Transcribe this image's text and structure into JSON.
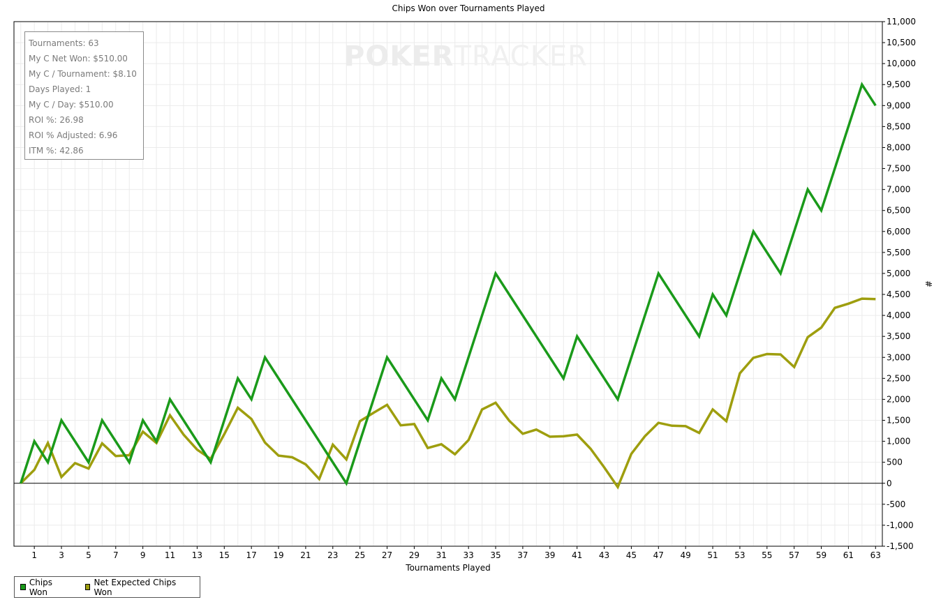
{
  "watermark": {
    "part1": "POKER",
    "part2": "TRACKER"
  },
  "stats": {
    "lines": [
      "Tournaments: 63",
      "My C Net Won: $510.00",
      "My C / Tournament: $8.10",
      "Days Played: 1",
      "My C / Day: $510.00",
      "ROI %: 26.98",
      "ROI % Adjusted: 6.96",
      "ITM %: 42.86"
    ]
  },
  "legend": {
    "items": [
      "Chips Won",
      "Net Expected Chips Won"
    ]
  },
  "colors": {
    "chips_won": "#1a9a1a",
    "net_expected": "#9e9e0e",
    "grid": "#ebebeb",
    "axis": "#000000"
  },
  "chart_data": {
    "type": "line",
    "title": "Chips Won over Tournaments Played",
    "xlabel": "Tournaments Played",
    "ylabel": "#",
    "xlim": [
      -0.5,
      63.5
    ],
    "ylim": [
      -1500,
      11000
    ],
    "x_ticks": [
      1,
      3,
      5,
      7,
      9,
      11,
      13,
      15,
      17,
      19,
      21,
      23,
      25,
      27,
      29,
      31,
      33,
      35,
      37,
      39,
      41,
      43,
      45,
      47,
      49,
      51,
      53,
      55,
      57,
      59,
      61,
      63
    ],
    "y_ticks": [
      -1500,
      -1000,
      -500,
      0,
      500,
      1000,
      1500,
      2000,
      2500,
      3000,
      3500,
      4000,
      4500,
      5000,
      5500,
      6000,
      6500,
      7000,
      7500,
      8000,
      8500,
      9000,
      9500,
      10000,
      10500,
      11000
    ],
    "y_tick_labels": [
      "-1,500",
      "-1,000",
      "-500",
      "0",
      "500",
      "1,000",
      "1,500",
      "2,000",
      "2,500",
      "3,000",
      "3,500",
      "4,000",
      "4,500",
      "5,000",
      "5,500",
      "6,000",
      "6,500",
      "7,000",
      "7,500",
      "8,000",
      "8,500",
      "9,000",
      "9,500",
      "10,000",
      "10,500",
      "11,000"
    ],
    "grid": true,
    "legend_position": "bottom-left",
    "series": [
      {
        "name": "Chips Won",
        "x": [
          0,
          1,
          2,
          3,
          5,
          6,
          8,
          9,
          10,
          11,
          14,
          16,
          17,
          18,
          24,
          27,
          30,
          31,
          32,
          35,
          40,
          41,
          44,
          47,
          50,
          51,
          52,
          54,
          56,
          58,
          59,
          62,
          63
        ],
        "y": [
          0,
          1000,
          500,
          1500,
          500,
          1500,
          500,
          1500,
          1000,
          2000,
          500,
          2500,
          2000,
          3000,
          0,
          3000,
          1500,
          2500,
          2000,
          5000,
          2500,
          3500,
          2000,
          5000,
          3500,
          4500,
          4000,
          6000,
          5000,
          7000,
          6500,
          9500,
          9000
        ]
      },
      {
        "name": "Net Expected Chips Won",
        "x": [
          0,
          1,
          2,
          3,
          4,
          5,
          6,
          7,
          8,
          9,
          10,
          11,
          12,
          13,
          14,
          15,
          16,
          17,
          18,
          19,
          20,
          21,
          22,
          23,
          24,
          25,
          26,
          27,
          28,
          29,
          30,
          31,
          32,
          33,
          34,
          35,
          36,
          37,
          38,
          39,
          40,
          41,
          42,
          43,
          44,
          45,
          46,
          47,
          48,
          49,
          50,
          51,
          52,
          53,
          54,
          55,
          56,
          57,
          58,
          59,
          60,
          61,
          62,
          63
        ],
        "y": [
          0,
          320,
          960,
          150,
          480,
          350,
          950,
          650,
          670,
          1230,
          960,
          1620,
          1160,
          800,
          580,
          1170,
          1800,
          1530,
          970,
          660,
          620,
          450,
          100,
          920,
          570,
          1480,
          1680,
          1870,
          1380,
          1410,
          840,
          930,
          690,
          1030,
          1760,
          1920,
          1490,
          1180,
          1280,
          1110,
          1120,
          1160,
          820,
          380,
          -90,
          700,
          1120,
          1440,
          1370,
          1360,
          1200,
          1760,
          1480,
          2620,
          2990,
          3080,
          3070,
          2770,
          3480,
          3710,
          4180,
          4280,
          4400,
          4390
        ]
      }
    ]
  }
}
